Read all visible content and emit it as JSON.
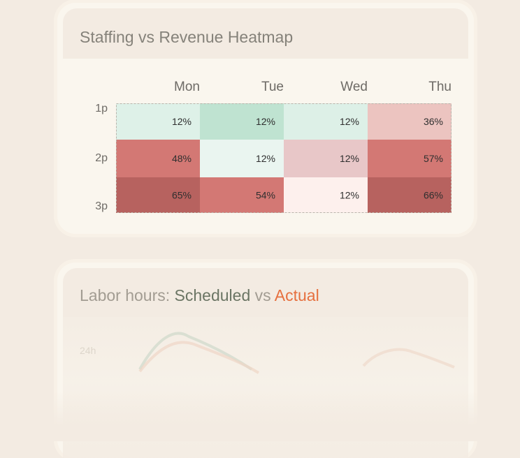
{
  "heatmap_card": {
    "title": "Staffing vs Revenue Heatmap"
  },
  "chart_data": {
    "type": "heatmap",
    "title": "Staffing vs Revenue Heatmap",
    "x_categories": [
      "Mon",
      "Tue",
      "Wed",
      "Thu"
    ],
    "y_categories": [
      "1p",
      "2p",
      "3p"
    ],
    "values": [
      [
        12,
        12,
        12,
        36
      ],
      [
        48,
        12,
        12,
        57
      ],
      [
        65,
        54,
        12,
        66
      ]
    ],
    "value_suffix": "%",
    "cell_colors": [
      [
        "#def1e8",
        "#bfe3d1",
        "#ddf0e7",
        "#ecc4c0"
      ],
      [
        "#d37874",
        "#eaf5f0",
        "#e8c7c8",
        "#d37874"
      ],
      [
        "#b7625f",
        "#d37874",
        "#fdf0ed",
        "#b7625f"
      ]
    ]
  },
  "labor_card": {
    "title_prefix": "Labor hours: ",
    "title_scheduled": "Scheduled",
    "title_vs": " vs ",
    "title_actual": "Actual",
    "y_tick": "24h",
    "colors": {
      "scheduled": "#6b7564",
      "actual": "#e6703f"
    }
  }
}
